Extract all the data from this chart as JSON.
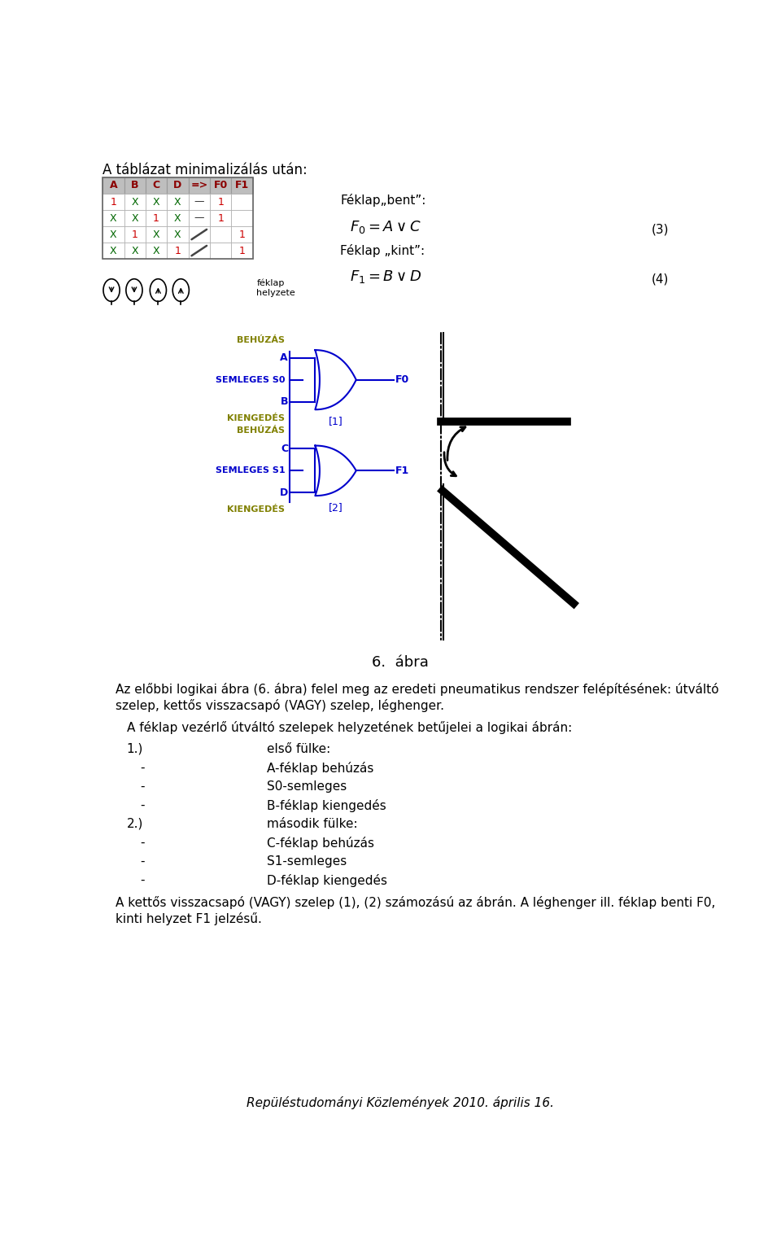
{
  "title_top": "A táblázat minimalizálás után:",
  "table_headers": [
    "A",
    "B",
    "C",
    "D",
    "=>",
    "F0",
    "F1"
  ],
  "table_rows": [
    [
      "1",
      "X",
      "X",
      "X",
      "—",
      "1",
      ""
    ],
    [
      "X",
      "X",
      "1",
      "X",
      "—",
      "1",
      ""
    ],
    [
      "X",
      "1",
      "X",
      "X",
      "\\",
      "",
      "1"
    ],
    [
      "X",
      "X",
      "X",
      "1",
      "\\",
      "",
      "1"
    ]
  ],
  "feklap_label": "féklap\nhelyzete",
  "feklapbent_label": "Féklap„bent”:",
  "feklapkint_label": "Féklap „kint”:",
  "F0_formula": "$F_0= A \\vee C$",
  "F1_formula": "$F_1= B \\vee D$",
  "eq3": "(3)",
  "eq4": "(4)",
  "BEHUZAS": "BEHÚZÁS",
  "SEMLEGES_S0": "SEMLEGES S0",
  "KIENGEDESEK": "KIENGEDÉS",
  "SEMLEGES_S1": "SEMLEGES S1",
  "gate1_label": "[1]",
  "gate2_label": "[2]",
  "F0": "F0",
  "F1": "F1",
  "fig_caption": "6.  ábra",
  "para1a": "Az előbbi logikai ábra (6. ábra) felel meg az eredeti pneumatikus rendszer felépítésének: útváltó",
  "para1b": "szelep, kettős visszacsapó (VAGY) szelep, léghenger.",
  "para2": "A féklap vezérlő útváltó szelepek helyzetének betűjelei a logikai ábrán:",
  "item1_num": "1.)",
  "item1_head": "első fülke:",
  "item1_a": "A-féklap behúzás",
  "item1_b": "S0-semleges",
  "item1_c": "B-féklap kiengedés",
  "item2_num": "2.)",
  "item2_head": "második fülke:",
  "item2_a": "C-féklap behúzás",
  "item2_b": "S1-semleges",
  "item2_c": "D-féklap kiengedés",
  "para3a": "A kettős visszacsapó (VAGY) szelep (1), (2) számozású az ábrán. A léghenger ill. féklap benti F0,",
  "para3b": "kinti helyzet F1 jelzésű.",
  "footer": "Repüléstudományi Közlemények 2010. április 16.",
  "blue": "#0000AA",
  "olive": "#808000",
  "red_h": "#8B0000",
  "green_x": "#006600",
  "red_1": "#CC0000",
  "black": "#000000",
  "gray_bg": "#BEBEBE",
  "diag_blue": "#0000CC"
}
